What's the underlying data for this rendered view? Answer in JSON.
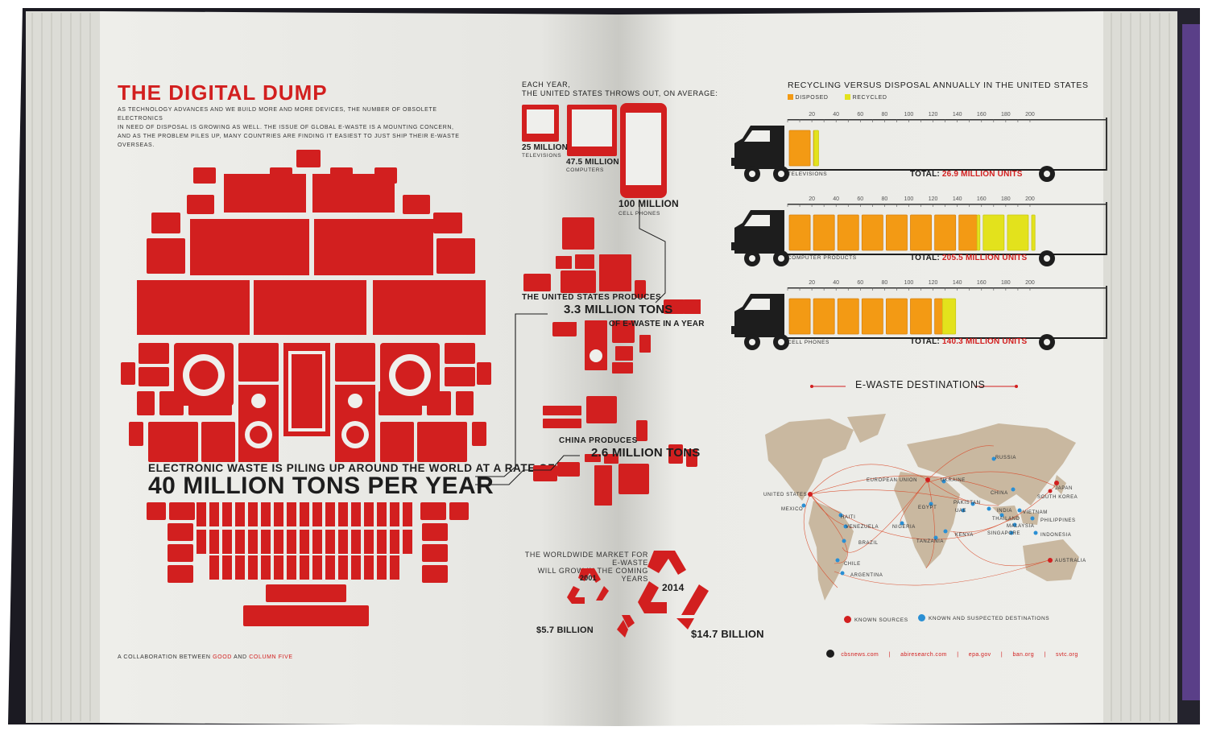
{
  "page": {
    "accent": "#d21f1f",
    "orange": "#f39a14",
    "yellow": "#e3e21c",
    "paper": "#efefec",
    "map_land": "#c9b8a0"
  },
  "left": {
    "title": "THE DIGITAL DUMP",
    "intro": [
      "AS TECHNOLOGY ADVANCES AND WE BUILD MORE AND MORE DEVICES, THE NUMBER OF OBSOLETE ELECTRONICS",
      "IN NEED OF DISPOSAL IS GROWING AS WELL. THE ISSUE OF GLOBAL E-WASTE IS A MOUNTING CONCERN,",
      "AND AS THE PROBLEM PILES UP, MANY COUNTRIES ARE FINDING IT EASIEST TO JUST SHIP THEIR E-WASTE OVERSEAS."
    ],
    "rate_line": "ELECTRONIC WASTE IS PILING UP AROUND THE WORLD AT A RATE OF",
    "rate_big": "40 MILLION TONS PER YEAR",
    "credit_prefix": "A COLLABORATION BETWEEN",
    "credit_good": "GOOD",
    "credit_and": "AND",
    "credit_c5": "COLUMN FIVE"
  },
  "center": {
    "each_year_1": "EACH YEAR,",
    "each_year_2": "THE UNITED STATES THROWS OUT, ON AVERAGE:",
    "tv_num": "25 MILLION",
    "tv_label": "TELEVISIONS",
    "comp_num": "47.5 MILLION",
    "comp_label": "COMPUTERS",
    "cell_num": "100 MILLION",
    "cell_label": "CELL PHONES",
    "us_line1": "THE UNITED STATES PRODUCES",
    "us_big": "3.3 MILLION TONS",
    "us_line3": "OF E-WASTE IN A YEAR",
    "cn_line1": "CHINA PRODUCES",
    "cn_big": "2.6 MILLION TONS",
    "market_1": "THE WORLDWIDE MARKET FOR E-WASTE",
    "market_2": "WILL GROW IN THE COMING YEARS",
    "year_2001": "2001",
    "year_2014": "2014",
    "value_2001": "$5.7 BILLION",
    "value_2014": "$14.7 BILLION"
  },
  "chart_data": {
    "type": "bar",
    "title": "RECYCLING VERSUS DISPOSAL ANNUALLY IN THE UNITED STATES",
    "legend": [
      "DISPOSED",
      "RECYCLED"
    ],
    "legend_placement": "top-left",
    "units": "MILLION UNITS",
    "ticks": [
      20,
      40,
      60,
      80,
      100,
      120,
      140,
      160,
      180,
      200
    ],
    "xlim": [
      0,
      200
    ],
    "categories": [
      "TELEVISIONS",
      "COMPUTER PRODUCTS",
      "CELL PHONES"
    ],
    "series": [
      {
        "name": "DISPOSED",
        "values": [
          20.6,
          157.3,
          127.5
        ]
      },
      {
        "name": "RECYCLED",
        "values": [
          6.3,
          48.2,
          12.8
        ]
      }
    ],
    "totals": [
      "26.9",
      "205.5",
      "140.3"
    ],
    "total_label": "TOTAL:",
    "total_suffix": "MILLION UNITS"
  },
  "map": {
    "title": "E-WASTE DESTINATIONS",
    "sources": [
      "UNITED STATES",
      "EUROPEAN UNION",
      "JAPAN",
      "SOUTH KOREA",
      "AUSTRALIA"
    ],
    "destinations": [
      "MEXICO",
      "HAITI",
      "VENEZUELA",
      "BRAZIL",
      "CHILE",
      "ARGENTINA",
      "NIGERIA",
      "EGYPT",
      "TANZANIA",
      "KENYA",
      "UKRAINE",
      "RUSSIA",
      "PAKISTAN",
      "UAE",
      "INDIA",
      "THAILAND",
      "CHINA",
      "VIETNAM",
      "PHILIPPINES",
      "MALAYSIA",
      "SINGAPORE",
      "INDONESIA"
    ],
    "legend_sources": "KNOWN SOURCES",
    "legend_dest": "KNOWN AND SUSPECTED DESTINATIONS"
  },
  "footer": {
    "links": [
      "cbsnews.com",
      "abiresearch.com",
      "epa.gov",
      "ban.org",
      "svtc.org"
    ]
  }
}
